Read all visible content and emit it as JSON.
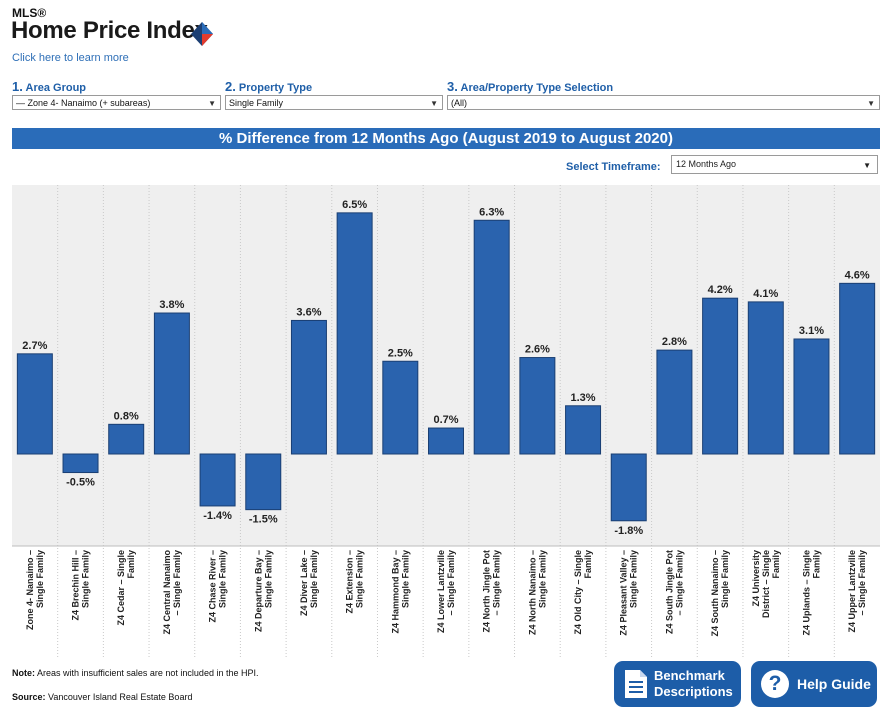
{
  "header": {
    "brand": "MLS®",
    "title": "Home Price Index",
    "learn_link": "Click here to learn more"
  },
  "selectors": {
    "area_group": {
      "num": "1.",
      "label": "Area Group",
      "value": "— Zone 4- Nanaimo (+ subareas)"
    },
    "property_type": {
      "num": "2.",
      "label": "Property Type",
      "value": "Single Family"
    },
    "area_selection": {
      "num": "3.",
      "label": "Area/Property Type Selection",
      "value": "(All)"
    }
  },
  "banner": "% Difference from 12 Months Ago (August 2019 to August 2020)",
  "timeframe": {
    "label": "Select Timeframe:",
    "value": "12 Months Ago"
  },
  "chart_data": {
    "type": "bar",
    "title": "% Difference from 12 Months Ago (August 2019 to August 2020)",
    "categories": [
      [
        "Zone 4- Nanaimo –",
        "Single Family"
      ],
      [
        "Z4 Brechin Hill –",
        "Single Family"
      ],
      [
        "Z4 Cedar – Single",
        "Family"
      ],
      [
        "Z4 Central Nanaimo",
        "– Single Family"
      ],
      [
        "Z4 Chase River –",
        "Single Family"
      ],
      [
        "Z4 Departure Bay –",
        "Single Family"
      ],
      [
        "Z4 Diver Lake –",
        "Single Family"
      ],
      [
        "Z4 Extension –",
        "Single Family"
      ],
      [
        "Z4 Hammond Bay –",
        "Single Family"
      ],
      [
        "Z4 Lower Lantzville",
        "– Single Family"
      ],
      [
        "Z4 North Jingle Pot",
        "– Single Family"
      ],
      [
        "Z4 North Nanaimo –",
        "Single Family"
      ],
      [
        "Z4 Old City – Single",
        "Family"
      ],
      [
        "Z4 Pleasant Valley –",
        "Single Family"
      ],
      [
        "Z4 South Jingle Pot",
        "– Single Family"
      ],
      [
        "Z4 South Nanaimo –",
        "Single Family"
      ],
      [
        "Z4 University",
        "District – Single",
        "Family"
      ],
      [
        "Z4 Uplands – Single",
        "Family"
      ],
      [
        "Z4 Upper Lantzville",
        "– Single Family"
      ]
    ],
    "values": [
      2.7,
      -0.5,
      0.8,
      3.8,
      -1.4,
      -1.5,
      3.6,
      6.5,
      2.5,
      0.7,
      6.3,
      2.6,
      1.3,
      -1.8,
      2.8,
      4.2,
      4.1,
      3.1,
      4.6
    ],
    "labels": [
      "2.7%",
      "-0.5%",
      "0.8%",
      "3.8%",
      "-1.4%",
      "-1.5%",
      "3.6%",
      "6.5%",
      "2.5%",
      "0.7%",
      "6.3%",
      "2.6%",
      "1.3%",
      "-1.8%",
      "2.8%",
      "4.2%",
      "4.1%",
      "3.1%",
      "4.6%"
    ],
    "bar_color": "#2a63ae",
    "plot_background": "#efefef",
    "grid": "vertical dotted separators"
  },
  "notes": {
    "note_label": "Note:",
    "note_text": "Areas with insufficient sales are not included in the HPI.",
    "source_label": "Source:",
    "source_text": "Vancouver Island Real Estate Board"
  },
  "buttons": {
    "benchmark_line1": "Benchmark",
    "benchmark_line2": "Descriptions",
    "help": "Help Guide"
  },
  "colors": {
    "accent": "#2a6cb9",
    "button": "#1d5da8"
  },
  "icons": {
    "logo": "mls-diamond-logo-icon",
    "document": "document-icon",
    "help": "question-circle-icon"
  }
}
